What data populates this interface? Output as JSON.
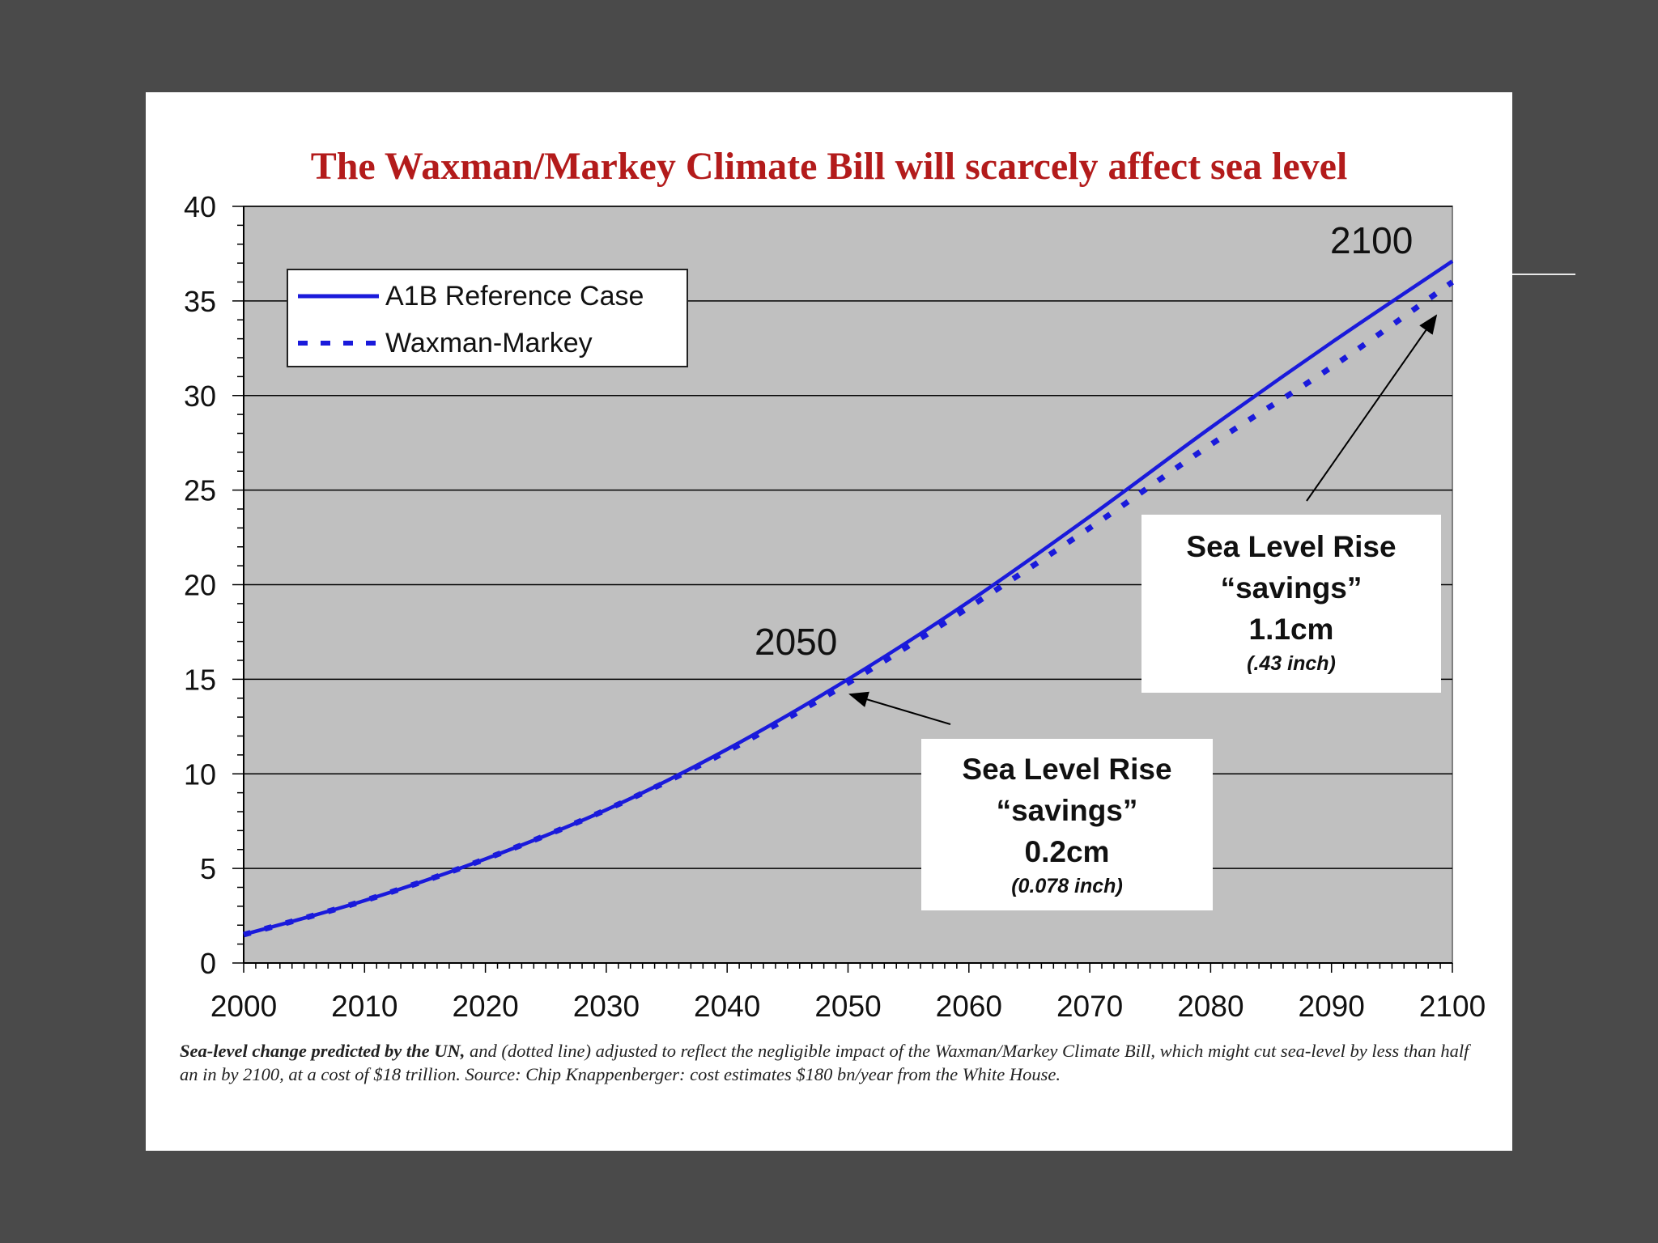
{
  "chart_data": {
    "type": "line",
    "title": "The Waxman/Markey Climate Bill will scarcely affect sea level",
    "xlabel": "",
    "ylabel": "",
    "xlim": [
      2000,
      2100
    ],
    "ylim": [
      0,
      40
    ],
    "x_ticks": [
      "2000",
      "2010",
      "2020",
      "2030",
      "2040",
      "2050",
      "2060",
      "2070",
      "2080",
      "2090",
      "2100"
    ],
    "y_ticks": [
      "0",
      "5",
      "10",
      "15",
      "20",
      "25",
      "30",
      "35",
      "40"
    ],
    "grid": "horizontal",
    "legend_position": "top-left",
    "x": [
      2000,
      2010,
      2020,
      2030,
      2040,
      2050,
      2060,
      2070,
      2080,
      2090,
      2100
    ],
    "series": [
      {
        "name": "A1B Reference Case",
        "style": "solid",
        "color": "#1a1adb",
        "values": [
          1.5,
          3.3,
          5.5,
          8.1,
          11.3,
          15.0,
          19.1,
          23.6,
          28.3,
          32.8,
          37.1
        ]
      },
      {
        "name": "Waxman-Markey",
        "style": "dotted",
        "color": "#1a1adb",
        "values": [
          1.5,
          3.3,
          5.5,
          8.1,
          11.2,
          14.8,
          18.8,
          23.0,
          27.4,
          31.5,
          36.0
        ]
      }
    ],
    "annotations": {
      "label_2100": "2100",
      "label_2050": "2050",
      "callout_2100": {
        "line1": "Sea Level Rise",
        "line2": "“savings”",
        "line3": "1.1cm",
        "line4": "(.43 inch)"
      },
      "callout_2050": {
        "line1": "Sea Level Rise",
        "line2": "“savings”",
        "line3": "0.2cm",
        "line4": "(0.078 inch)"
      }
    },
    "caption_bold": "Sea-level change predicted by the UN,",
    "caption_rest": " and (dotted line) adjusted to reflect the negligible impact of the Waxman/Markey Climate Bill, which might cut sea-level by less than half an in by 2100, at a cost of $18 trillion. Source: Chip Knappenberger: cost estimates $180 bn/year from the White House."
  },
  "colors": {
    "background": "#4a4a4a",
    "plot_area": "#c0c0c0",
    "title": "#b31b1b",
    "line": "#1a1adb"
  }
}
